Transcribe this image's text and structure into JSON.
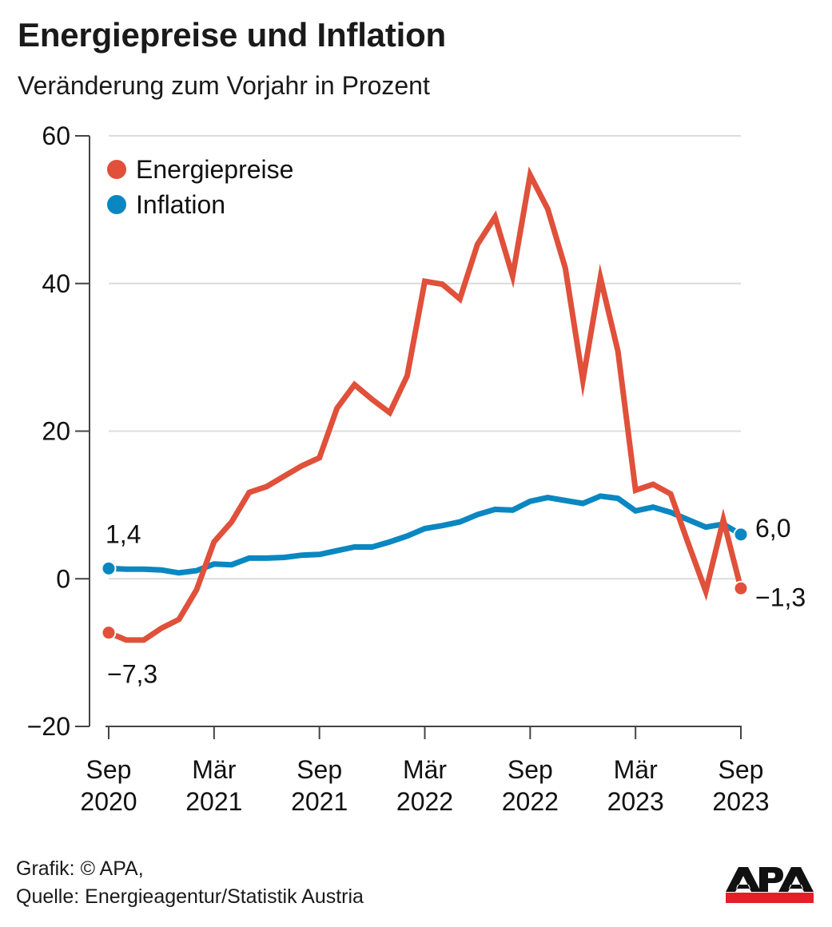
{
  "header": {
    "title": "Energiepreise und Inflation",
    "subtitle": "Veränderung zum Vorjahr in Prozent"
  },
  "footer": {
    "credit": "Grafik: © APA,",
    "source": "Quelle: Energieagentur/Statistik Austria"
  },
  "logo": {
    "text": "APA",
    "bar_color": "#E3202A",
    "letter_color": "#111111"
  },
  "chart_data": {
    "type": "line",
    "title": "Energiepreise und Inflation",
    "subtitle": "Veränderung zum Vorjahr in Prozent",
    "xlabel": "",
    "ylabel": "",
    "ylim": [
      -20,
      60
    ],
    "yticks": [
      -20,
      0,
      20,
      40,
      60
    ],
    "ytick_labels": [
      "−20",
      "0",
      "20",
      "40",
      "60"
    ],
    "grid": true,
    "legend_position": "top-left",
    "x": [
      "2020-09",
      "2020-10",
      "2020-11",
      "2020-12",
      "2021-01",
      "2021-02",
      "2021-03",
      "2021-04",
      "2021-05",
      "2021-06",
      "2021-07",
      "2021-08",
      "2021-09",
      "2021-10",
      "2021-11",
      "2021-12",
      "2022-01",
      "2022-02",
      "2022-03",
      "2022-04",
      "2022-05",
      "2022-06",
      "2022-07",
      "2022-08",
      "2022-09",
      "2022-10",
      "2022-11",
      "2022-12",
      "2023-01",
      "2023-02",
      "2023-03",
      "2023-04",
      "2023-05",
      "2023-06",
      "2023-07",
      "2023-08",
      "2023-09"
    ],
    "xticks": [
      {
        "index": 0,
        "line1": "Sep",
        "line2": "2020"
      },
      {
        "index": 6,
        "line1": "Mär",
        "line2": "2021"
      },
      {
        "index": 12,
        "line1": "Sep",
        "line2": "2021"
      },
      {
        "index": 18,
        "line1": "Mär",
        "line2": "2022"
      },
      {
        "index": 24,
        "line1": "Sep",
        "line2": "2022"
      },
      {
        "index": 30,
        "line1": "Mär",
        "line2": "2023"
      },
      {
        "index": 36,
        "line1": "Sep",
        "line2": "2023"
      }
    ],
    "series": [
      {
        "name": "Energiepreise",
        "color": "#E0503A",
        "values": [
          -7.3,
          -8.3,
          -8.3,
          -6.7,
          -5.5,
          -1.5,
          5.0,
          7.7,
          11.7,
          12.5,
          13.9,
          15.3,
          16.4,
          23.1,
          26.3,
          24.3,
          22.5,
          27.5,
          40.3,
          39.9,
          37.9,
          45.3,
          49.0,
          41.0,
          54.7,
          50.1,
          42.1,
          26.9,
          40.8,
          30.8,
          12.0,
          12.8,
          11.5,
          4.8,
          -1.7,
          8.0,
          -1.3
        ],
        "start_label": "−7,3",
        "end_label": "−1,3"
      },
      {
        "name": "Inflation",
        "color": "#0A87C1",
        "values": [
          1.4,
          1.3,
          1.3,
          1.2,
          0.8,
          1.1,
          2.0,
          1.9,
          2.8,
          2.8,
          2.9,
          3.2,
          3.3,
          3.8,
          4.3,
          4.3,
          5.0,
          5.8,
          6.8,
          7.2,
          7.7,
          8.7,
          9.4,
          9.3,
          10.5,
          11.0,
          10.6,
          10.2,
          11.2,
          10.9,
          9.2,
          9.7,
          9.0,
          8.0,
          7.0,
          7.4,
          6.0
        ],
        "start_label": "1,4",
        "end_label": "6,0"
      }
    ]
  }
}
